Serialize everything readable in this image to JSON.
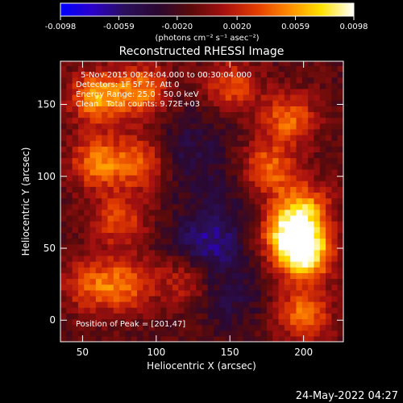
{
  "colorbar": {
    "ticks": [
      "-0.0098",
      "-0.0059",
      "-0.0020",
      "0.0020",
      "0.0059",
      "0.0098"
    ],
    "tick_values": [
      -0.0098,
      -0.0059,
      -0.002,
      0.002,
      0.0059,
      0.0098
    ],
    "range": [
      -0.0098,
      0.0098
    ],
    "units": "(photons cm⁻² s⁻¹ asec⁻²)",
    "colors": [
      "#0000ff",
      "#2b00c8",
      "#2a0f5a",
      "#2a0830",
      "#5a0a0a",
      "#a51010",
      "#e23b00",
      "#ff8a00",
      "#ffe200",
      "#ffffff"
    ]
  },
  "chart_data": {
    "type": "heatmap",
    "title": "Reconstructed RHESSI Image",
    "xlabel": "Heliocentric X (arcsec)",
    "ylabel": "Heliocentric Y (arcsec)",
    "xlim": [
      35,
      227
    ],
    "ylim": [
      -15,
      180
    ],
    "xticks": [
      "50",
      "100",
      "150",
      "200"
    ],
    "xtick_values": [
      50,
      100,
      150,
      200
    ],
    "yticks": [
      "0",
      "50",
      "100",
      "150"
    ],
    "ytick_values": [
      0,
      50,
      100,
      150
    ],
    "sources": [
      {
        "x": 201,
        "y": 47,
        "value": 0.0098
      },
      {
        "x": 190,
        "y": 60,
        "value": 0.0075
      },
      {
        "x": 60,
        "y": 155,
        "value": 0.0068
      },
      {
        "x": 90,
        "y": 160,
        "value": 0.0055
      },
      {
        "x": 150,
        "y": 162,
        "value": 0.0045
      },
      {
        "x": 190,
        "y": 140,
        "value": 0.005
      },
      {
        "x": 60,
        "y": 110,
        "value": 0.0055
      },
      {
        "x": 90,
        "y": 110,
        "value": 0.005
      },
      {
        "x": 175,
        "y": 105,
        "value": 0.0055
      },
      {
        "x": 200,
        "y": 78,
        "value": 0.006
      },
      {
        "x": 75,
        "y": 70,
        "value": 0.004
      },
      {
        "x": 55,
        "y": 25,
        "value": 0.004
      },
      {
        "x": 80,
        "y": 25,
        "value": 0.0045
      },
      {
        "x": 120,
        "y": 28,
        "value": 0.003
      },
      {
        "x": 200,
        "y": 5,
        "value": 0.0055
      },
      {
        "x": 115,
        "y": 115,
        "value": -0.004
      },
      {
        "x": 135,
        "y": 55,
        "value": -0.007
      },
      {
        "x": 150,
        "y": 15,
        "value": -0.004
      },
      {
        "x": 150,
        "y": 95,
        "value": -0.003
      },
      {
        "x": 135,
        "y": 140,
        "value": -0.0025
      }
    ],
    "annotations": [
      "5-Nov-2015 00:24:04.000 to 00:30:04.000",
      "Detectors: 1F 5F 7F, Att 0",
      "Energy Range: 25.0 - 50.0 keV",
      "Clean   Total counts: 9.72E+03",
      "Position of Peak = [201,47]"
    ]
  },
  "footer": {
    "date": "24-May-2022 04:27"
  }
}
